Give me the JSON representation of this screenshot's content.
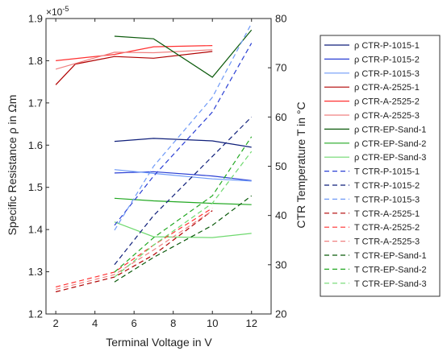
{
  "chart_data": {
    "type": "line",
    "title": "",
    "xlabel": "Terminal Voltage in V",
    "ylabel_left": "Specific Resistance ρ in Ωm",
    "ylabel_right": "CTR Temperature T in °C",
    "exponent_label": "×10",
    "exponent_power": "-5",
    "xlim": [
      1.5,
      13
    ],
    "ylim_left": [
      1.2,
      1.9
    ],
    "ylim_right": [
      20,
      80
    ],
    "xticks": [
      "2",
      "4",
      "6",
      "8",
      "10",
      "12"
    ],
    "yticks_left": [
      "1.2",
      "1.3",
      "1.4",
      "1.5",
      "1.6",
      "1.7",
      "1.8",
      "1.9"
    ],
    "yticks_right": [
      "20",
      "30",
      "40",
      "50",
      "60",
      "70",
      "80"
    ],
    "grid": false,
    "legend_position": "right, outside",
    "series": [
      {
        "name": "ρ CTR-P-1015-1",
        "axis": "left",
        "style": "solid",
        "color": "#0f1f7a",
        "x": [
          5,
          7,
          10,
          12
        ],
        "y": [
          1.609,
          1.616,
          1.61,
          1.595
        ]
      },
      {
        "name": "ρ CTR-P-1015-2",
        "axis": "left",
        "style": "solid",
        "color": "#2a3fd4",
        "x": [
          5,
          7,
          10,
          12
        ],
        "y": [
          1.534,
          1.537,
          1.527,
          1.516
        ]
      },
      {
        "name": "ρ CTR-P-1015-3",
        "axis": "left",
        "style": "solid",
        "color": "#6f9af7",
        "x": [
          5,
          7,
          10,
          12
        ],
        "y": [
          1.542,
          1.533,
          1.52,
          1.515
        ]
      },
      {
        "name": "ρ CTR-A-2525-1",
        "axis": "left",
        "style": "solid",
        "color": "#b00000",
        "x": [
          2,
          3,
          5,
          7,
          10
        ],
        "y": [
          1.743,
          1.792,
          1.81,
          1.806,
          1.822
        ]
      },
      {
        "name": "ρ CTR-A-2525-2",
        "axis": "left",
        "style": "solid",
        "color": "#ff3030",
        "x": [
          2,
          5,
          7,
          10
        ],
        "y": [
          1.8,
          1.815,
          1.833,
          1.836
        ]
      },
      {
        "name": "ρ CTR-A-2525-3",
        "axis": "left",
        "style": "solid",
        "color": "#f08080",
        "x": [
          2,
          5,
          7,
          10
        ],
        "y": [
          1.78,
          1.82,
          1.819,
          1.826
        ]
      },
      {
        "name": "ρ CTR-EP-Sand-1",
        "axis": "left",
        "style": "solid",
        "color": "#0b5a0b",
        "x": [
          5,
          7,
          10,
          12
        ],
        "y": [
          1.858,
          1.852,
          1.761,
          1.873
        ]
      },
      {
        "name": "ρ CTR-EP-Sand-2",
        "axis": "left",
        "style": "solid",
        "color": "#22a822",
        "x": [
          5,
          7,
          10,
          12
        ],
        "y": [
          1.474,
          1.468,
          1.462,
          1.459
        ]
      },
      {
        "name": "ρ CTR-EP-Sand-3",
        "axis": "left",
        "style": "solid",
        "color": "#6fd96f",
        "x": [
          5,
          7,
          10,
          12
        ],
        "y": [
          1.418,
          1.383,
          1.381,
          1.391
        ]
      },
      {
        "name": "T CTR-P-1015-1",
        "axis": "right",
        "style": "dashed",
        "color": "#2a3fd4",
        "x": [
          5,
          7,
          10,
          12
        ],
        "y": [
          38,
          48,
          61,
          75
        ]
      },
      {
        "name": "T CTR-P-1015-2",
        "axis": "right",
        "style": "dashed",
        "color": "#0f1f7a",
        "x": [
          5,
          7,
          10,
          12
        ],
        "y": [
          30,
          40,
          52,
          60
        ]
      },
      {
        "name": "T CTR-P-1015-3",
        "axis": "right",
        "style": "dashed",
        "color": "#6f9af7",
        "x": [
          5,
          7,
          10,
          12
        ],
        "y": [
          37,
          50,
          64,
          79
        ]
      },
      {
        "name": "T CTR-A-2525-1",
        "axis": "right",
        "style": "dashed",
        "color": "#b00000",
        "x": [
          2,
          5,
          7,
          10
        ],
        "y": [
          24.5,
          27.5,
          32,
          41
        ]
      },
      {
        "name": "T CTR-A-2525-2",
        "axis": "right",
        "style": "dashed",
        "color": "#ff3030",
        "x": [
          2,
          5,
          7,
          10
        ],
        "y": [
          25.5,
          28.5,
          34,
          41.5
        ]
      },
      {
        "name": "T CTR-A-2525-3",
        "axis": "right",
        "style": "dashed",
        "color": "#f08080",
        "x": [
          2,
          5,
          7,
          10
        ],
        "y": [
          25,
          28,
          33,
          41
        ]
      },
      {
        "name": "T CTR-EP-Sand-1",
        "axis": "right",
        "style": "dashed",
        "color": "#0b5a0b",
        "x": [
          5,
          7,
          10,
          12
        ],
        "y": [
          26.5,
          31.5,
          38,
          44
        ]
      },
      {
        "name": "T CTR-EP-Sand-2",
        "axis": "right",
        "style": "dashed",
        "color": "#22a822",
        "x": [
          5,
          7,
          10,
          12
        ],
        "y": [
          28.5,
          35.5,
          44,
          56
        ]
      },
      {
        "name": "T CTR-EP-Sand-3",
        "axis": "right",
        "style": "dashed",
        "color": "#6fd96f",
        "x": [
          5,
          7,
          10,
          12
        ],
        "y": [
          27.5,
          34,
          42.5,
          53
        ]
      }
    ]
  }
}
